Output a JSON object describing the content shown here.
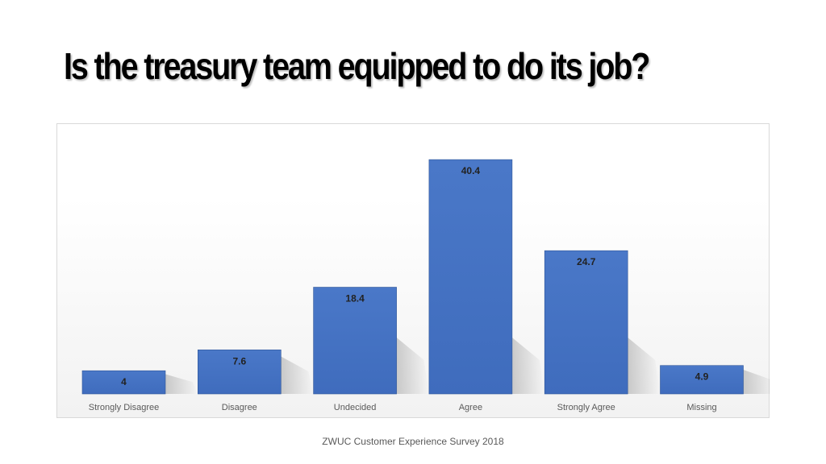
{
  "title": "Is the treasury team equipped to do its job?",
  "footer": "ZWUC Customer Experience Survey 2018",
  "colors": {
    "bar": "#4472c4",
    "bar_edge": "#2f5597",
    "label_text": "#222222",
    "category_text": "#595959"
  },
  "chart_data": {
    "type": "bar",
    "categories": [
      "Strongly Disagree",
      "Disagree",
      "Undecided",
      "Agree",
      "Strongly Agree",
      "Missing"
    ],
    "values": [
      4,
      7.6,
      18.4,
      40.4,
      24.7,
      4.9
    ],
    "data_labels": [
      "4",
      "7.6",
      "18.4",
      "40.4",
      "24.7",
      "4.9"
    ],
    "title": "",
    "xlabel": "",
    "ylabel": "",
    "ylim": [
      0,
      45
    ],
    "grid": false,
    "legend": "none"
  }
}
